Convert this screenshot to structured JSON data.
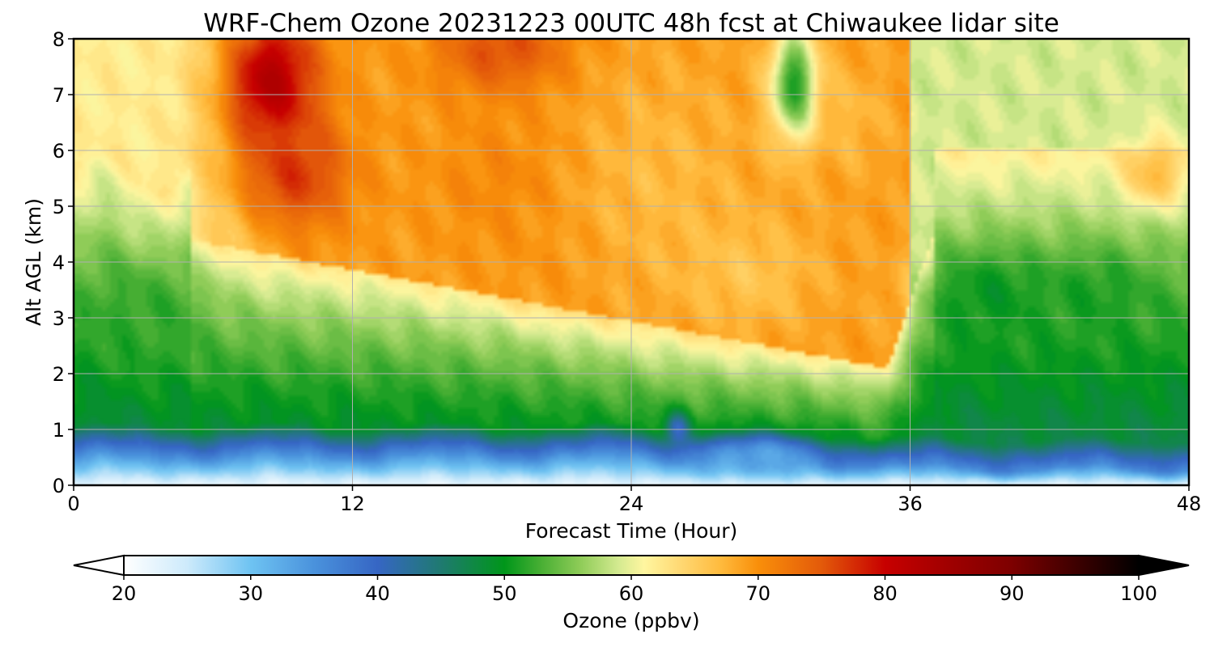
{
  "chart_data": {
    "type": "heatmap",
    "title": "WRF-Chem Ozone  20231223 00UTC 48h fcst at Chiwaukee lidar site",
    "xlabel": "Forecast Time (Hour)",
    "ylabel": "Alt AGL (km)",
    "xlim": [
      0,
      48
    ],
    "ylim": [
      0,
      8
    ],
    "x_ticks": [
      "0",
      "12",
      "24",
      "36",
      "48"
    ],
    "y_ticks": [
      "0",
      "1",
      "2",
      "3",
      "4",
      "5",
      "6",
      "7",
      "8"
    ],
    "grid": true,
    "colorbar": {
      "label": "Ozone  (ppbv)",
      "range": [
        20,
        100
      ],
      "extend": "both",
      "ticks": [
        "20",
        "30",
        "40",
        "50",
        "60",
        "70",
        "80",
        "90",
        "100"
      ],
      "stops": [
        {
          "v": 20,
          "c": "#ffffff"
        },
        {
          "v": 25,
          "c": "#cdeafb"
        },
        {
          "v": 30,
          "c": "#6ec3f2"
        },
        {
          "v": 35,
          "c": "#4a92dc"
        },
        {
          "v": 40,
          "c": "#3666c4"
        },
        {
          "v": 45,
          "c": "#1f7a70"
        },
        {
          "v": 50,
          "c": "#00961a"
        },
        {
          "v": 53,
          "c": "#4bb035"
        },
        {
          "v": 56,
          "c": "#8fcc58"
        },
        {
          "v": 59,
          "c": "#d4ea90"
        },
        {
          "v": 61,
          "c": "#fff6a0"
        },
        {
          "v": 64,
          "c": "#ffd771"
        },
        {
          "v": 67,
          "c": "#ffbb3e"
        },
        {
          "v": 70,
          "c": "#f98f0a"
        },
        {
          "v": 75,
          "c": "#e35a0a"
        },
        {
          "v": 80,
          "c": "#c70000"
        },
        {
          "v": 85,
          "c": "#a00000"
        },
        {
          "v": 90,
          "c": "#7d0000"
        },
        {
          "v": 95,
          "c": "#3e0000"
        },
        {
          "v": 100,
          "c": "#000000"
        }
      ]
    },
    "features": [
      {
        "x": 8.5,
        "y": 7.2,
        "value": 83,
        "sx": 2.0,
        "sy": 1.3
      },
      {
        "x": 9.5,
        "y": 5.6,
        "value": 77,
        "sx": 2.3,
        "sy": 1.0
      },
      {
        "x": 18.5,
        "y": 7.8,
        "value": 76,
        "sx": 2.8,
        "sy": 0.8
      },
      {
        "x": 19,
        "y": 5.5,
        "value": 71,
        "sx": 3.5,
        "sy": 1.3
      },
      {
        "x": 21,
        "y": 4.2,
        "value": 70,
        "sx": 2.0,
        "sy": 0.8
      },
      {
        "x": 25,
        "y": 5.5,
        "value": 67,
        "sx": 4.0,
        "sy": 2.0
      },
      {
        "x": 29,
        "y": 3.8,
        "value": 66,
        "sx": 3.0,
        "sy": 1.0
      },
      {
        "x": 33.5,
        "y": 6.6,
        "value": 67,
        "sx": 1.5,
        "sy": 1.0
      },
      {
        "x": 31,
        "y": 7.2,
        "value": 51,
        "sx": 1.0,
        "sy": 1.0
      },
      {
        "x": 39.5,
        "y": 3.4,
        "value": 50,
        "sx": 2.5,
        "sy": 0.8
      },
      {
        "x": 44,
        "y": 3.4,
        "value": 51,
        "sx": 2.5,
        "sy": 0.8
      },
      {
        "x": 46.5,
        "y": 5.6,
        "value": 67,
        "sx": 1.3,
        "sy": 0.6
      },
      {
        "x": 3,
        "y": 3.0,
        "value": 52,
        "sx": 2.5,
        "sy": 1.0
      },
      {
        "x": 29.5,
        "y": 0.5,
        "value": 33,
        "sx": 2.5,
        "sy": 0.35
      },
      {
        "x": 26,
        "y": 1.0,
        "value": 40,
        "sx": 0.5,
        "sy": 0.3
      }
    ]
  }
}
